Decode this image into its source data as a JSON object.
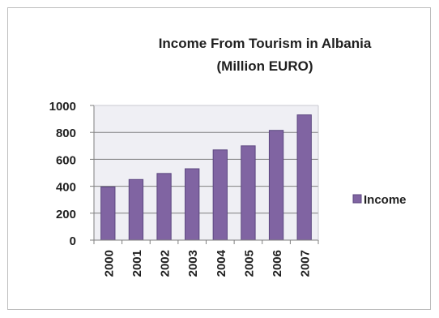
{
  "chart_data": {
    "type": "bar",
    "title": "Income From Tourism  in Albania",
    "subtitle": "(Million EURO)",
    "categories": [
      "2000",
      "2001",
      "2002",
      "2003",
      "2004",
      "2005",
      "2006",
      "2007"
    ],
    "series": [
      {
        "name": "Income",
        "values": [
          395,
          450,
          495,
          530,
          670,
          700,
          815,
          930
        ],
        "color": "#8064A2"
      }
    ],
    "y_ticks": [
      0,
      200,
      400,
      600,
      800,
      1000
    ],
    "ylim": [
      0,
      1000
    ],
    "grid": true,
    "legend_position": "right",
    "colors": {
      "bar_fill": "#8064A2",
      "bar_stroke": "#5c4780",
      "plot_background": "#efeff4",
      "gridline": "#7f7f7f"
    }
  }
}
